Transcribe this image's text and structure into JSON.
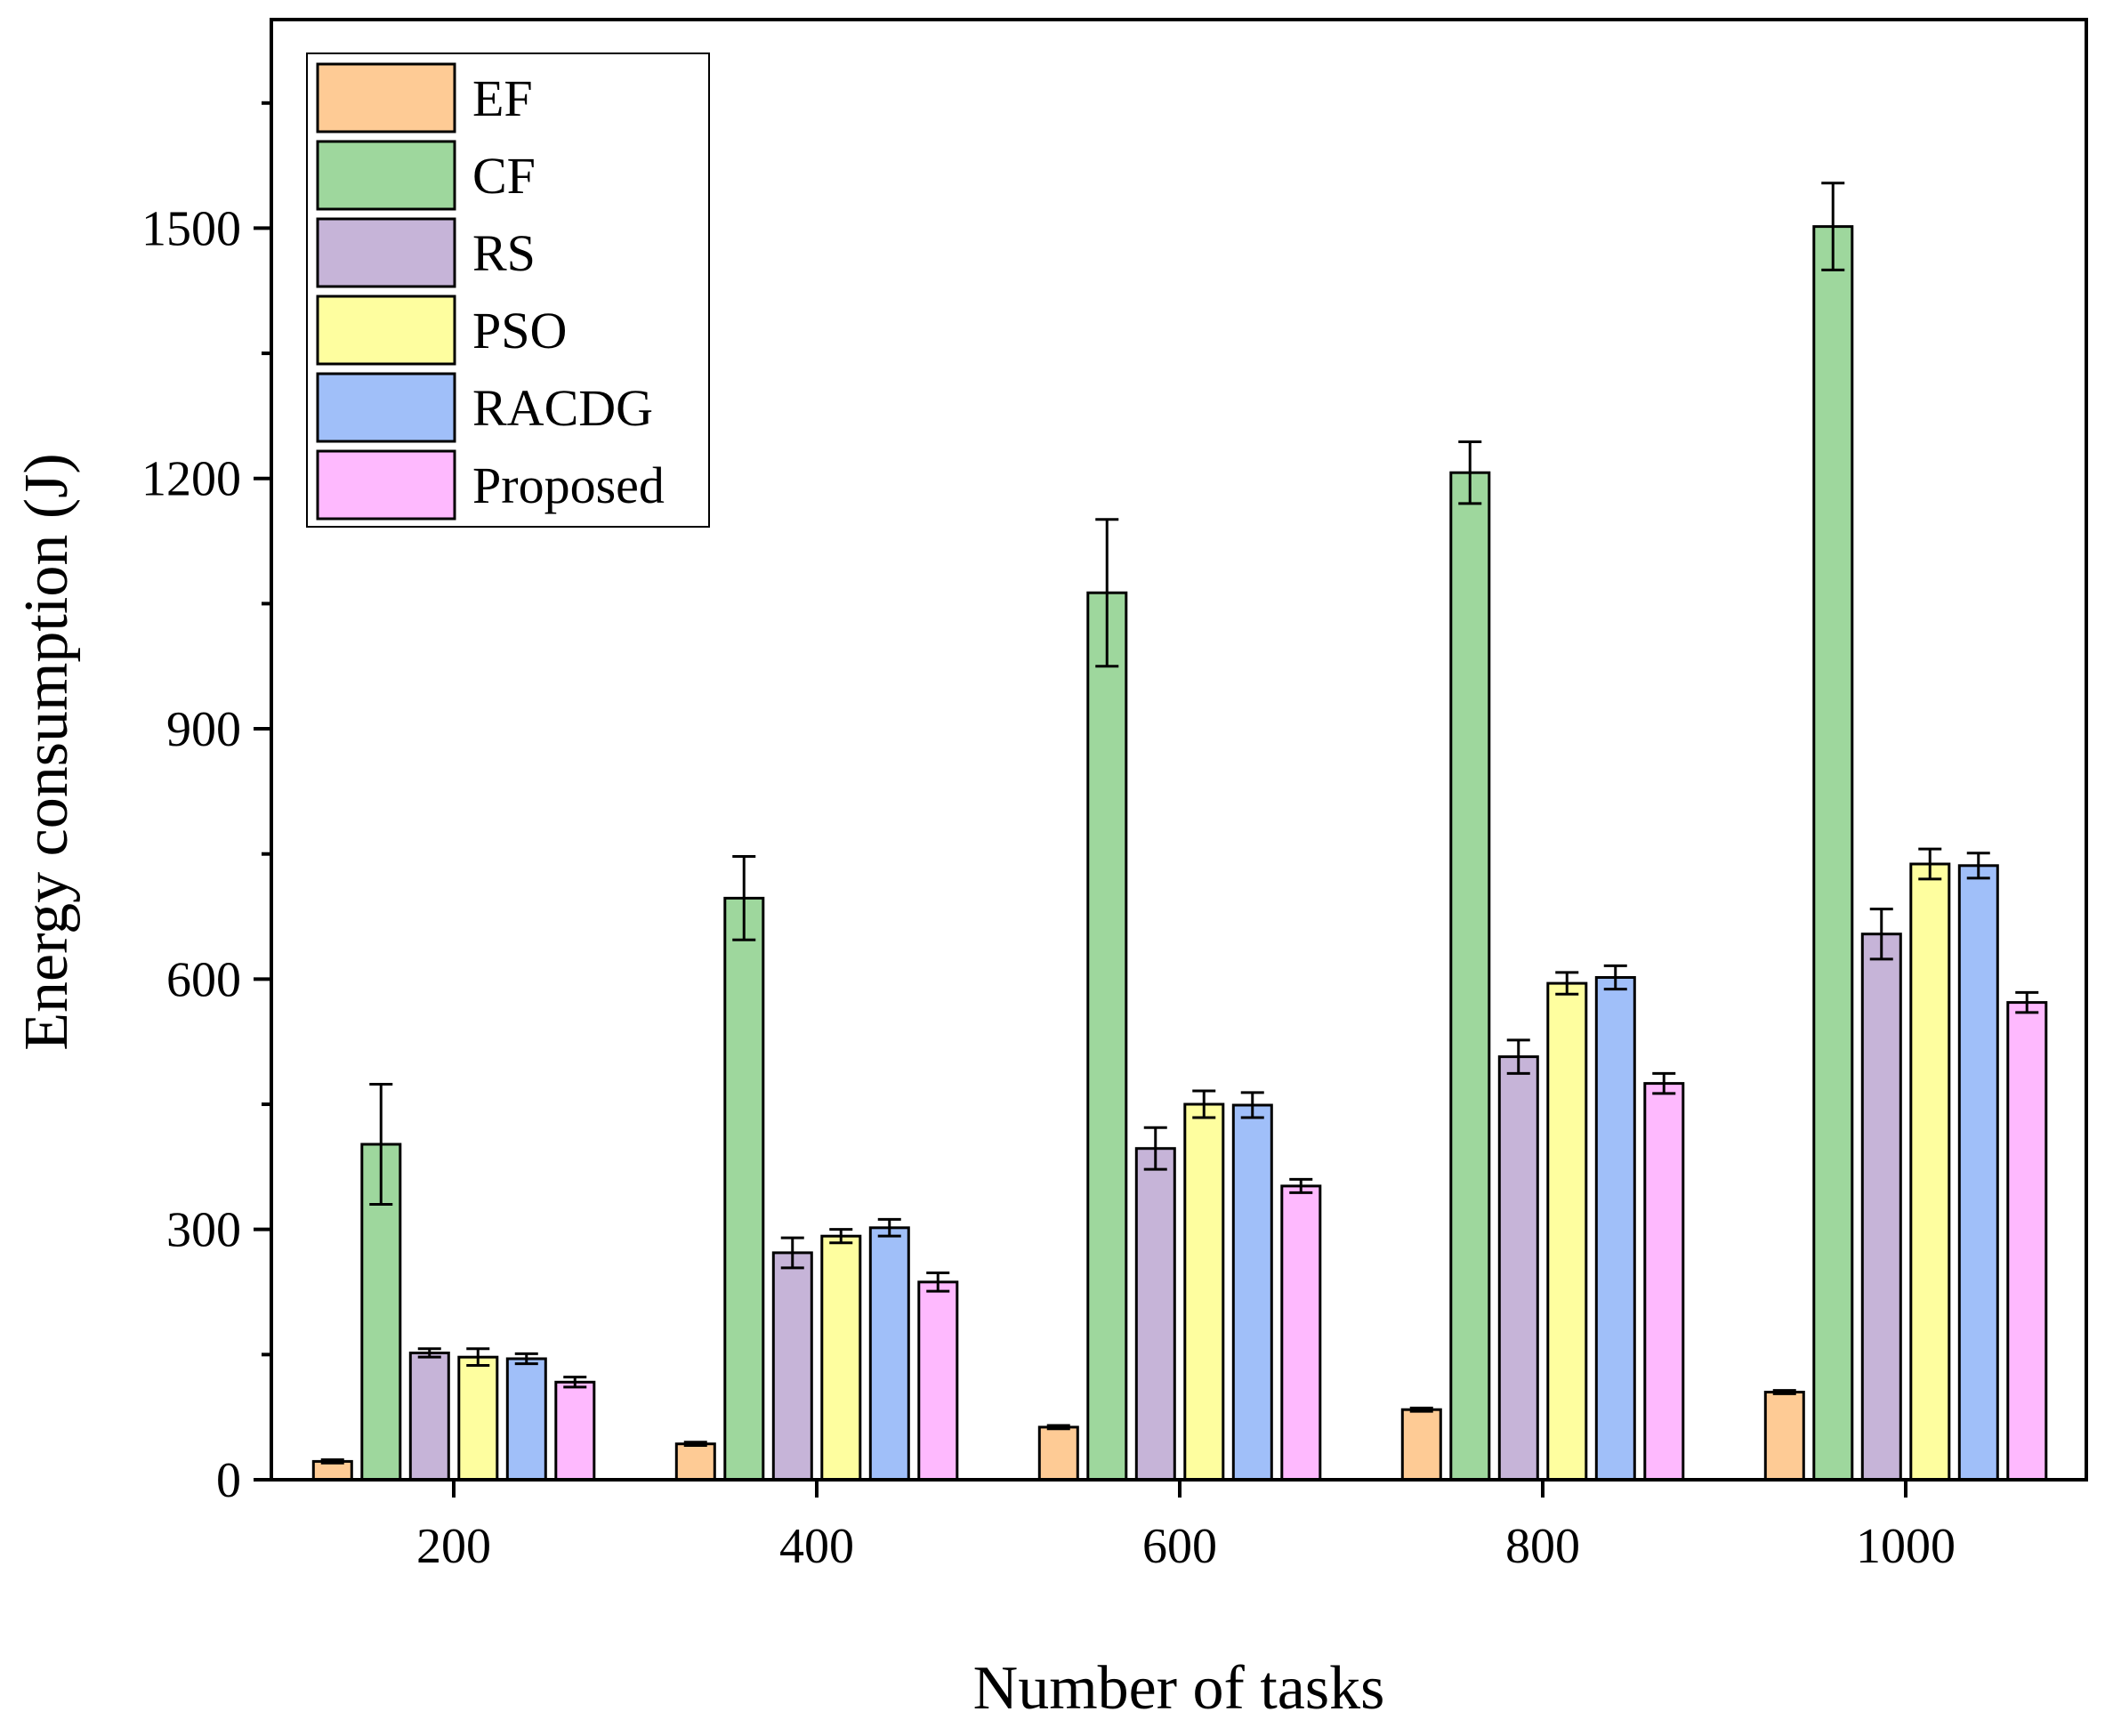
{
  "chart_data": {
    "type": "bar",
    "title": "",
    "xlabel": "Number of tasks",
    "ylabel": "Energy consumption (J)",
    "categories": [
      "200",
      "400",
      "600",
      "800",
      "1000"
    ],
    "ylim": [
      0,
      1750
    ],
    "yticks": [
      0,
      300,
      600,
      900,
      1200,
      1500
    ],
    "ytick_labels": [
      "0",
      "300",
      "600",
      "900",
      "1200",
      "1500"
    ],
    "legend_position": "top-left",
    "error_bars": true,
    "series": [
      {
        "name": "EF",
        "color": "#FECB95",
        "values": [
          22,
          43,
          63,
          84,
          105
        ],
        "errors": [
          2,
          2,
          2,
          2,
          2
        ]
      },
      {
        "name": "CF",
        "color": "#9ED79D",
        "values": [
          402,
          697,
          1063,
          1207,
          1502
        ],
        "errors": [
          72,
          50,
          88,
          37,
          52
        ]
      },
      {
        "name": "RS",
        "color": "#C6B4D8",
        "values": [
          152,
          272,
          397,
          507,
          654
        ],
        "errors": [
          5,
          18,
          25,
          20,
          30
        ]
      },
      {
        "name": "PSO",
        "color": "#FEFE9F",
        "values": [
          147,
          292,
          450,
          595,
          738
        ],
        "errors": [
          10,
          8,
          16,
          13,
          18
        ]
      },
      {
        "name": "RACDG",
        "color": "#A0BFF9",
        "values": [
          145,
          302,
          449,
          602,
          736
        ],
        "errors": [
          6,
          10,
          15,
          14,
          15
        ]
      },
      {
        "name": "Proposed",
        "color": "#FEB9FE",
        "values": [
          117,
          237,
          352,
          475,
          572
        ],
        "errors": [
          6,
          11,
          8,
          12,
          12
        ]
      }
    ]
  }
}
